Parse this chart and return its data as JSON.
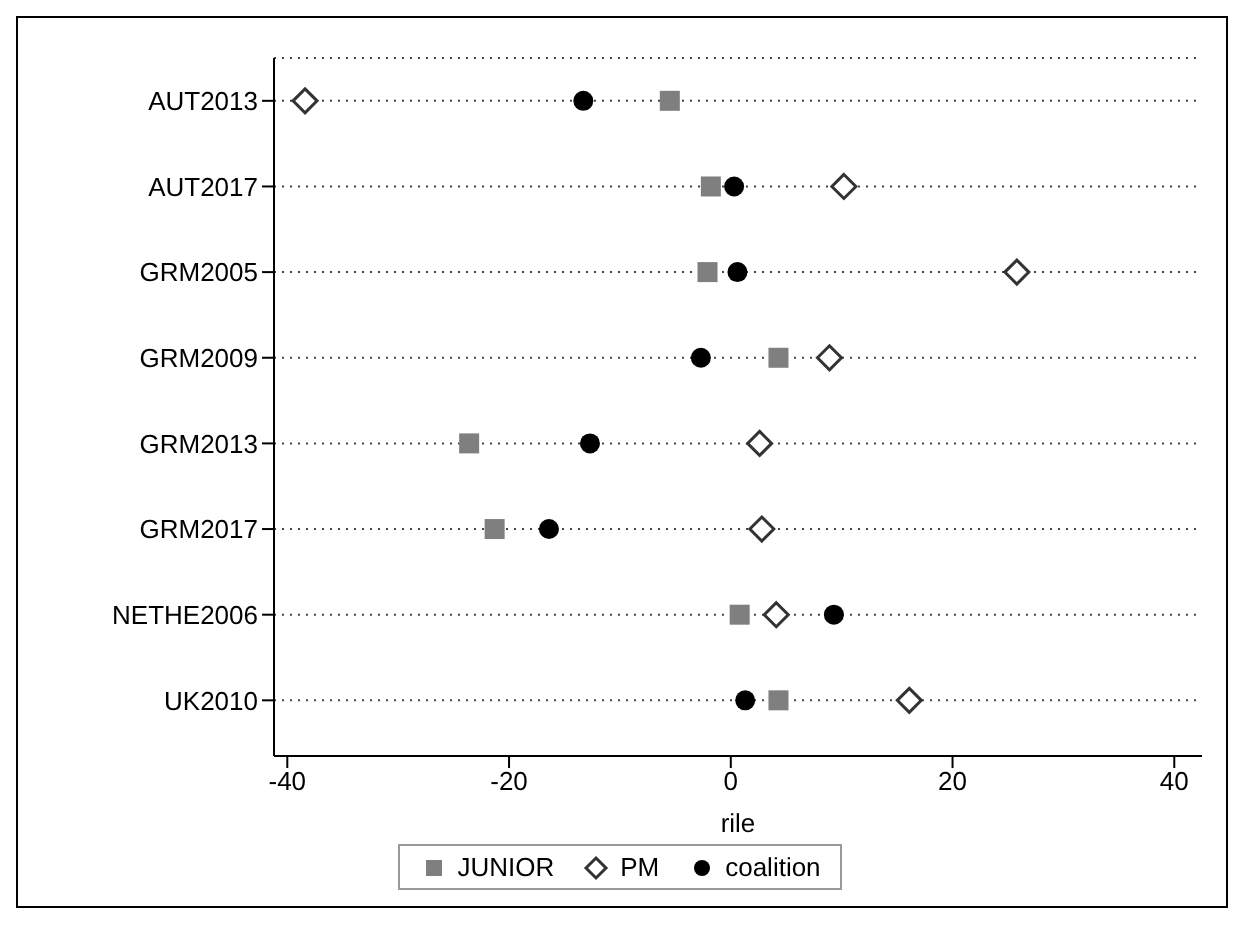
{
  "chart_data": {
    "type": "scatter",
    "orientation": "horizontal",
    "xlabel": "rile",
    "categories": [
      "AUT2013",
      "AUT2017",
      "GRM2005",
      "GRM2009",
      "GRM2013",
      "GRM2017",
      "NETHE2006",
      "UK2010"
    ],
    "series": [
      {
        "name": "JUNIOR",
        "color": "#7f7f7f",
        "marker": "square",
        "values": [
          -5.5,
          -1.8,
          -2.1,
          4.3,
          -23.6,
          -21.3,
          0.8,
          4.3
        ]
      },
      {
        "name": "PM",
        "color": "#333333",
        "marker": "diamond",
        "values": [
          -38.4,
          10.2,
          25.8,
          8.9,
          2.6,
          2.8,
          4.1,
          16.1
        ]
      },
      {
        "name": "coalition",
        "color": "#000000",
        "marker": "circle",
        "values": [
          -13.3,
          0.3,
          0.6,
          -2.7,
          -12.7,
          -16.4,
          9.3,
          1.3
        ]
      }
    ],
    "xlim": [
      -41.2,
      42.5
    ],
    "xticks": [
      -40,
      -20,
      0,
      20,
      40
    ],
    "grid": "y",
    "line_style": "dotted",
    "legend": "bottom"
  }
}
